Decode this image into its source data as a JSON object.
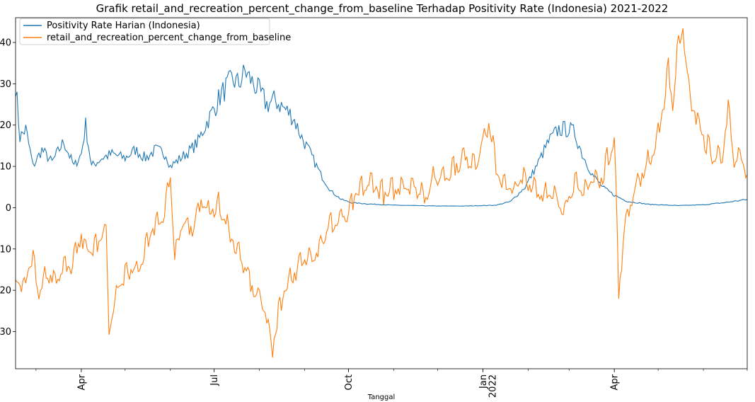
{
  "chart_data": {
    "type": "line",
    "title": "Grafik retail_and_recreation_percent_change_from_baseline Terhadap Positivity Rate (Indonesia) 2021-2022",
    "xlabel": "Tanggal",
    "ylabel": "",
    "ylim": [
      -39,
      46
    ],
    "yticks": [
      -30,
      -20,
      -10,
      0,
      10,
      20,
      30,
      40
    ],
    "xrange": [
      "2021-02-15",
      "2022-07-01"
    ],
    "xticks": [
      {
        "date": "2021-04-01",
        "label": "Apr",
        "label2": ""
      },
      {
        "date": "2021-07-01",
        "label": "Jul",
        "label2": ""
      },
      {
        "date": "2021-10-01",
        "label": "Oct",
        "label2": ""
      },
      {
        "date": "2022-01-01",
        "label": "Jan",
        "label2": "2022"
      },
      {
        "date": "2022-04-01",
        "label": "Apr",
        "label2": ""
      }
    ],
    "grid": false,
    "legend_position": "top-left",
    "series": [
      {
        "name": "Positivity Rate Harian (Indonesia)",
        "color": "#1f77b4",
        "points": [
          [
            "2021-02-15",
            30
          ],
          [
            "2021-02-18",
            17
          ],
          [
            "2021-02-22",
            19
          ],
          [
            "2021-02-27",
            10
          ],
          [
            "2021-03-05",
            14
          ],
          [
            "2021-03-12",
            11
          ],
          [
            "2021-03-20",
            16
          ],
          [
            "2021-03-27",
            10
          ],
          [
            "2021-04-01",
            13
          ],
          [
            "2021-04-04",
            20
          ],
          [
            "2021-04-08",
            10
          ],
          [
            "2021-04-15",
            12
          ],
          [
            "2021-04-22",
            13
          ],
          [
            "2021-05-01",
            12
          ],
          [
            "2021-05-08",
            14
          ],
          [
            "2021-05-15",
            12
          ],
          [
            "2021-05-22",
            14
          ],
          [
            "2021-05-29",
            13
          ],
          [
            "2021-06-01",
            10
          ],
          [
            "2021-06-08",
            12
          ],
          [
            "2021-06-15",
            14
          ],
          [
            "2021-06-20",
            16
          ],
          [
            "2021-06-25",
            20
          ],
          [
            "2021-07-01",
            24
          ],
          [
            "2021-07-05",
            27
          ],
          [
            "2021-07-09",
            29
          ],
          [
            "2021-07-13",
            31
          ],
          [
            "2021-07-18",
            30
          ],
          [
            "2021-07-22",
            33
          ],
          [
            "2021-07-26",
            31
          ],
          [
            "2021-08-01",
            28
          ],
          [
            "2021-08-06",
            25
          ],
          [
            "2021-08-12",
            26
          ],
          [
            "2021-08-18",
            24
          ],
          [
            "2021-08-24",
            22
          ],
          [
            "2021-08-30",
            17
          ],
          [
            "2021-09-05",
            13
          ],
          [
            "2021-09-12",
            8
          ],
          [
            "2021-09-19",
            4
          ],
          [
            "2021-09-26",
            2
          ],
          [
            "2021-10-03",
            1.2
          ],
          [
            "2021-10-15",
            0.9
          ],
          [
            "2021-11-01",
            0.6
          ],
          [
            "2021-12-01",
            0.4
          ],
          [
            "2021-12-20",
            0.4
          ],
          [
            "2022-01-10",
            0.6
          ],
          [
            "2022-01-20",
            1.5
          ],
          [
            "2022-01-30",
            5
          ],
          [
            "2022-02-08",
            11
          ],
          [
            "2022-02-15",
            16
          ],
          [
            "2022-02-22",
            19
          ],
          [
            "2022-03-01",
            19
          ],
          [
            "2022-03-05",
            18
          ],
          [
            "2022-03-10",
            13
          ],
          [
            "2022-03-17",
            8
          ],
          [
            "2022-03-24",
            5
          ],
          [
            "2022-04-01",
            3
          ],
          [
            "2022-04-10",
            1.5
          ],
          [
            "2022-04-25",
            0.8
          ],
          [
            "2022-05-15",
            0.5
          ],
          [
            "2022-06-01",
            0.7
          ],
          [
            "2022-06-15",
            1.2
          ],
          [
            "2022-07-01",
            2
          ]
        ]
      },
      {
        "name": "retail_and_recreation_percent_change_from_baseline",
        "color": "#ff7f0e",
        "points": [
          [
            "2021-02-15",
            -17
          ],
          [
            "2021-02-20",
            -19
          ],
          [
            "2021-02-27",
            -12
          ],
          [
            "2021-03-03",
            -20
          ],
          [
            "2021-03-08",
            -16
          ],
          [
            "2021-03-14",
            -17
          ],
          [
            "2021-03-20",
            -15
          ],
          [
            "2021-03-26",
            -14
          ],
          [
            "2021-04-01",
            -7
          ],
          [
            "2021-04-06",
            -11
          ],
          [
            "2021-04-12",
            -9
          ],
          [
            "2021-04-18",
            -5
          ],
          [
            "2021-04-20",
            -30
          ],
          [
            "2021-04-26",
            -20
          ],
          [
            "2021-05-03",
            -15
          ],
          [
            "2021-05-10",
            -16
          ],
          [
            "2021-05-16",
            -8
          ],
          [
            "2021-05-22",
            -4
          ],
          [
            "2021-05-28",
            -1
          ],
          [
            "2021-06-01",
            8
          ],
          [
            "2021-06-04",
            -13
          ],
          [
            "2021-06-10",
            -3
          ],
          [
            "2021-06-16",
            -5
          ],
          [
            "2021-06-22",
            2
          ],
          [
            "2021-06-28",
            -2
          ],
          [
            "2021-07-03",
            1
          ],
          [
            "2021-07-08",
            -3
          ],
          [
            "2021-07-14",
            -8
          ],
          [
            "2021-07-20",
            -13
          ],
          [
            "2021-07-25",
            -18
          ],
          [
            "2021-08-01",
            -22
          ],
          [
            "2021-08-06",
            -26
          ],
          [
            "2021-08-10",
            -35
          ],
          [
            "2021-08-14",
            -25
          ],
          [
            "2021-08-20",
            -18
          ],
          [
            "2021-08-27",
            -15
          ],
          [
            "2021-09-03",
            -12
          ],
          [
            "2021-09-10",
            -10
          ],
          [
            "2021-09-17",
            -5
          ],
          [
            "2021-09-24",
            -3
          ],
          [
            "2021-10-01",
            -2
          ],
          [
            "2021-10-06",
            3
          ],
          [
            "2021-10-12",
            5
          ],
          [
            "2021-10-18",
            6
          ],
          [
            "2021-10-25",
            3
          ],
          [
            "2021-11-01",
            4
          ],
          [
            "2021-11-08",
            6
          ],
          [
            "2021-11-15",
            5
          ],
          [
            "2021-11-22",
            3
          ],
          [
            "2021-11-29",
            7
          ],
          [
            "2021-12-06",
            8
          ],
          [
            "2021-12-13",
            10
          ],
          [
            "2021-12-20",
            12
          ],
          [
            "2021-12-27",
            11
          ],
          [
            "2022-01-01",
            16
          ],
          [
            "2022-01-05",
            20
          ],
          [
            "2022-01-10",
            10
          ],
          [
            "2022-01-16",
            5
          ],
          [
            "2022-01-22",
            4
          ],
          [
            "2022-01-28",
            7
          ],
          [
            "2022-02-03",
            6
          ],
          [
            "2022-02-08",
            4
          ],
          [
            "2022-02-14",
            3
          ],
          [
            "2022-02-20",
            2
          ],
          [
            "2022-02-26",
            0
          ],
          [
            "2022-03-04",
            6
          ],
          [
            "2022-03-10",
            3
          ],
          [
            "2022-03-16",
            7
          ],
          [
            "2022-03-22",
            6
          ],
          [
            "2022-03-28",
            12
          ],
          [
            "2022-04-01",
            18
          ],
          [
            "2022-04-04",
            -21
          ],
          [
            "2022-04-08",
            -5
          ],
          [
            "2022-04-14",
            4
          ],
          [
            "2022-04-20",
            8
          ],
          [
            "2022-04-26",
            12
          ],
          [
            "2022-05-02",
            18
          ],
          [
            "2022-05-08",
            34
          ],
          [
            "2022-05-11",
            25
          ],
          [
            "2022-05-15",
            40
          ],
          [
            "2022-05-18",
            45
          ],
          [
            "2022-05-21",
            30
          ],
          [
            "2022-05-25",
            24
          ],
          [
            "2022-05-29",
            20
          ],
          [
            "2022-06-03",
            15
          ],
          [
            "2022-06-08",
            12
          ],
          [
            "2022-06-14",
            13
          ],
          [
            "2022-06-18",
            23
          ],
          [
            "2022-06-22",
            11
          ],
          [
            "2022-06-27",
            12
          ],
          [
            "2022-07-01",
            8
          ]
        ]
      }
    ]
  }
}
